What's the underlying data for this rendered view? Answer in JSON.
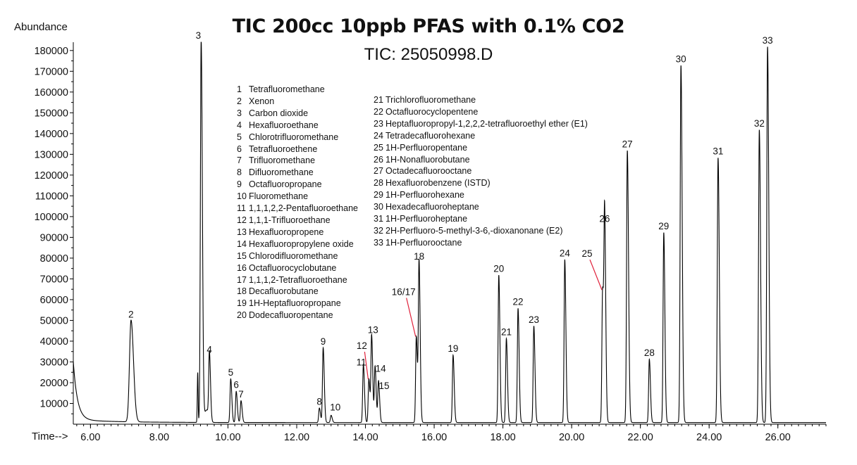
{
  "chart_data": {
    "type": "line",
    "title": "TIC 200cc 10ppb PFAS with 0.1% CO2",
    "subtitle": "TIC: 25050998.D",
    "ylabel": "Abundance",
    "xlabel": "Time-->",
    "xlim": [
      5.5,
      27.4
    ],
    "ylim": [
      0,
      184000
    ],
    "x_ticks": [
      "6.00",
      "8.00",
      "10.00",
      "12.00",
      "14.00",
      "16.00",
      "18.00",
      "20.00",
      "22.00",
      "24.00",
      "26.00"
    ],
    "y_ticks": [
      "10000",
      "20000",
      "30000",
      "40000",
      "50000",
      "60000",
      "70000",
      "80000",
      "90000",
      "100000",
      "110000",
      "120000",
      "130000",
      "140000",
      "150000",
      "160000",
      "170000",
      "180000"
    ],
    "peaks": [
      {
        "label": "2",
        "rt": 7.18,
        "height": 49000
      },
      {
        "label": "3",
        "rt": 9.22,
        "height": 184000
      },
      {
        "label": "4",
        "rt": 9.46,
        "height": 32000
      },
      {
        "label": "5",
        "rt": 10.08,
        "height": 21000
      },
      {
        "label": "6",
        "rt": 10.24,
        "height": 15000
      },
      {
        "label": "7",
        "rt": 10.38,
        "height": 10500
      },
      {
        "label": "8",
        "rt": 12.66,
        "height": 7000
      },
      {
        "label": "9",
        "rt": 12.77,
        "height": 36000
      },
      {
        "label": "10",
        "rt": 13.0,
        "height": 3500
      },
      {
        "label": "11",
        "rt": 13.94,
        "height": 28000
      },
      {
        "label": "12",
        "rt": 14.1,
        "height": 21000
      },
      {
        "label": "13",
        "rt": 14.18,
        "height": 41500
      },
      {
        "label": "14",
        "rt": 14.28,
        "height": 27000
      },
      {
        "label": "15",
        "rt": 14.38,
        "height": 20000
      },
      {
        "label": "16/17",
        "rt": 15.48,
        "height": 41500
      },
      {
        "label": "18",
        "rt": 15.56,
        "height": 77000
      },
      {
        "label": "19",
        "rt": 16.55,
        "height": 32500
      },
      {
        "label": "20",
        "rt": 17.88,
        "height": 71000
      },
      {
        "label": "21",
        "rt": 18.1,
        "height": 40500
      },
      {
        "label": "22",
        "rt": 18.44,
        "height": 55000
      },
      {
        "label": "23",
        "rt": 18.9,
        "height": 46500
      },
      {
        "label": "24",
        "rt": 19.8,
        "height": 78500
      },
      {
        "label": "25",
        "rt": 20.9,
        "height": 64000
      },
      {
        "label": "26",
        "rt": 20.96,
        "height": 95000
      },
      {
        "label": "27",
        "rt": 21.62,
        "height": 131000
      },
      {
        "label": "28",
        "rt": 22.26,
        "height": 30500
      },
      {
        "label": "29",
        "rt": 22.68,
        "height": 91500
      },
      {
        "label": "30",
        "rt": 23.18,
        "height": 172000
      },
      {
        "label": "31",
        "rt": 24.26,
        "height": 127500
      },
      {
        "label": "32",
        "rt": 25.46,
        "height": 141000
      },
      {
        "label": "33",
        "rt": 25.7,
        "height": 181000
      }
    ],
    "legend": [
      {
        "num": "1",
        "name": "Tetrafluoromethane"
      },
      {
        "num": "2",
        "name": "Xenon"
      },
      {
        "num": "3",
        "name": "Carbon dioxide"
      },
      {
        "num": "4",
        "name": "Hexafluoroethane"
      },
      {
        "num": "5",
        "name": "Chlorotrifluoromethane"
      },
      {
        "num": "6",
        "name": "Tetrafluoroethene"
      },
      {
        "num": "7",
        "name": "Trifluoromethane"
      },
      {
        "num": "8",
        "name": "Difluoromethane"
      },
      {
        "num": "9",
        "name": "Octafluoropropane"
      },
      {
        "num": "10",
        "name": "Fluoromethane"
      },
      {
        "num": "11",
        "name": "1,1,1,2,2-Pentafluoroethane"
      },
      {
        "num": "12",
        "name": "1,1,1-Trifluoroethane"
      },
      {
        "num": "13",
        "name": "Hexafluoropropene"
      },
      {
        "num": "14",
        "name": "Hexafluoropropylene oxide"
      },
      {
        "num": "15",
        "name": "Chlorodifluoromethane"
      },
      {
        "num": "16",
        "name": "Octafluorocyclobutane"
      },
      {
        "num": "17",
        "name": "1,1,1,2-Tetrafluoroethane"
      },
      {
        "num": "18",
        "name": "Decafluorobutane"
      },
      {
        "num": "19",
        "name": "1H-Heptafluoropropane"
      },
      {
        "num": "20",
        "name": "Dodecafluoropentane"
      },
      {
        "num": "21",
        "name": "Trichlorofluoromethane"
      },
      {
        "num": "22",
        "name": "Octafluorocyclopentene"
      },
      {
        "num": "23",
        "name": "Heptafluoropropyl-1,2,2,2-tetrafluoroethyl ether (E1)"
      },
      {
        "num": "24",
        "name": "Tetradecafluorohexane"
      },
      {
        "num": "25",
        "name": "1H-Perfluoropentane"
      },
      {
        "num": "26",
        "name": "1H-Nonafluorobutane"
      },
      {
        "num": "27",
        "name": "Octadecafluorooctane"
      },
      {
        "num": "28",
        "name": "Hexafluorobenzene (ISTD)"
      },
      {
        "num": "29",
        "name": "1H-Perfluorohexane"
      },
      {
        "num": "30",
        "name": "Hexadecafluoroheptane"
      },
      {
        "num": "31",
        "name": "1H-Perfluoroheptane"
      },
      {
        "num": "32",
        "name": "2H-Perfluoro-5-methyl-3-6,-dioxanonane (E2)"
      },
      {
        "num": "33",
        "name": "1H-Perfluorooctane"
      }
    ],
    "grid": false,
    "line_color": "#000000",
    "pointer_color": "#e0203a"
  }
}
